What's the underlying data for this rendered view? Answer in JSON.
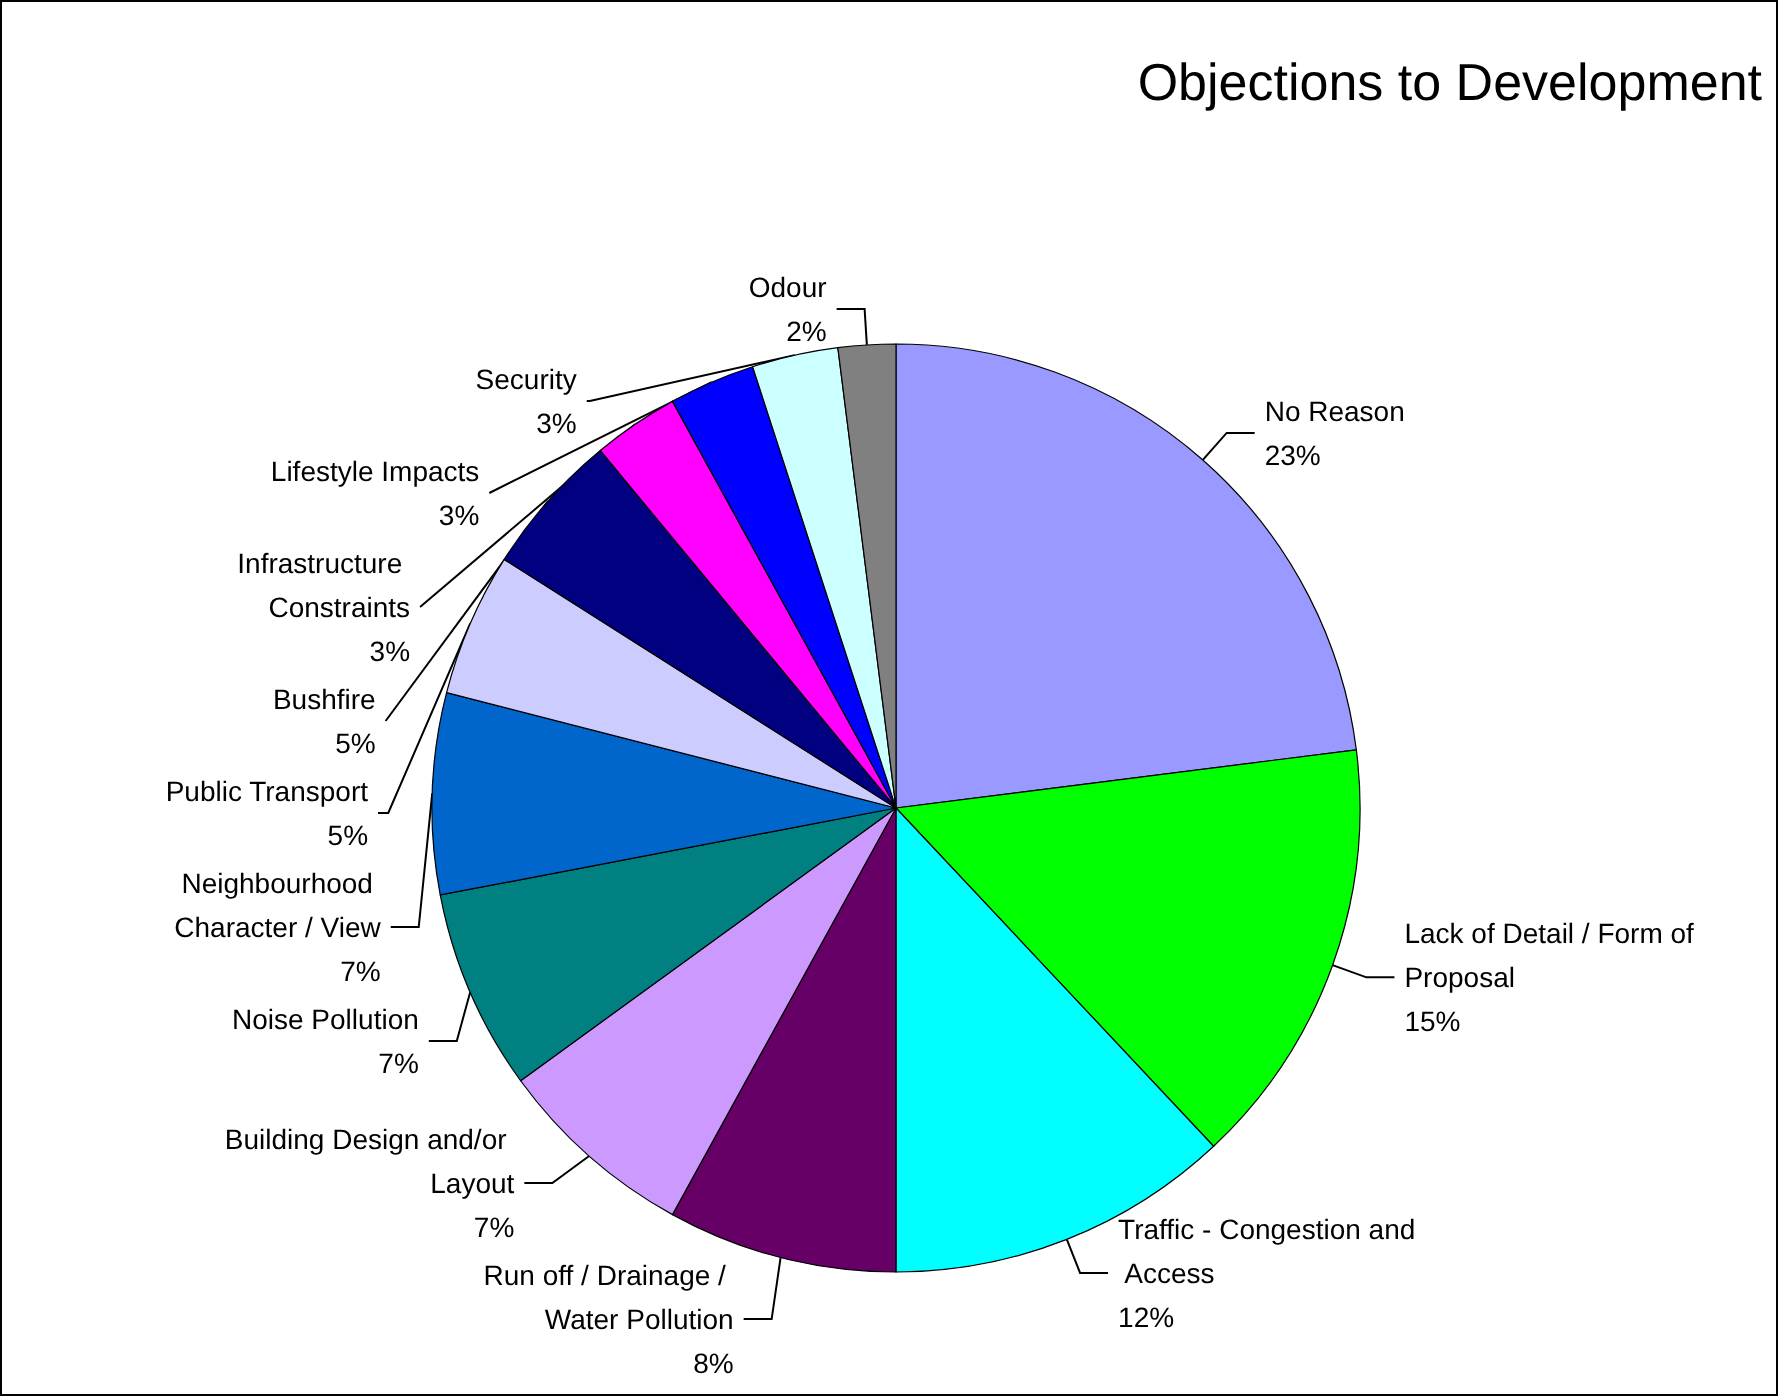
{
  "chart_data": {
    "type": "pie",
    "title": "Objections to Development",
    "categories": [
      "No Reason",
      "Lack of Detail / Form of Proposal",
      "Traffic - Congestion and Access",
      "Run off / Drainage / Water Pollution",
      "Building Design and/or Layout",
      "Noise Pollution",
      "Neighbourhood Character / View",
      "Public Transport",
      "Bushfire",
      "Infrastructure Constraints",
      "Lifestyle Impacts",
      "Security",
      "Odour"
    ],
    "values": [
      23,
      15,
      12,
      8,
      7,
      7,
      7,
      5,
      5,
      3,
      3,
      3,
      2
    ],
    "value_labels": [
      "23%",
      "15%",
      "12%",
      "8%",
      "7%",
      "7%",
      "7%",
      "5%",
      "5%",
      "3%",
      "3%",
      "3%",
      "2%"
    ],
    "colors": [
      "#9999ff",
      "#00ff00",
      "#00ffff",
      "#660066",
      "#cc99ff",
      "#008080",
      "#0066cc",
      "#ccccff",
      "#000080",
      "#ff00ff",
      "#0000ff",
      "#ccffff",
      "#808080"
    ],
    "legend": false
  }
}
